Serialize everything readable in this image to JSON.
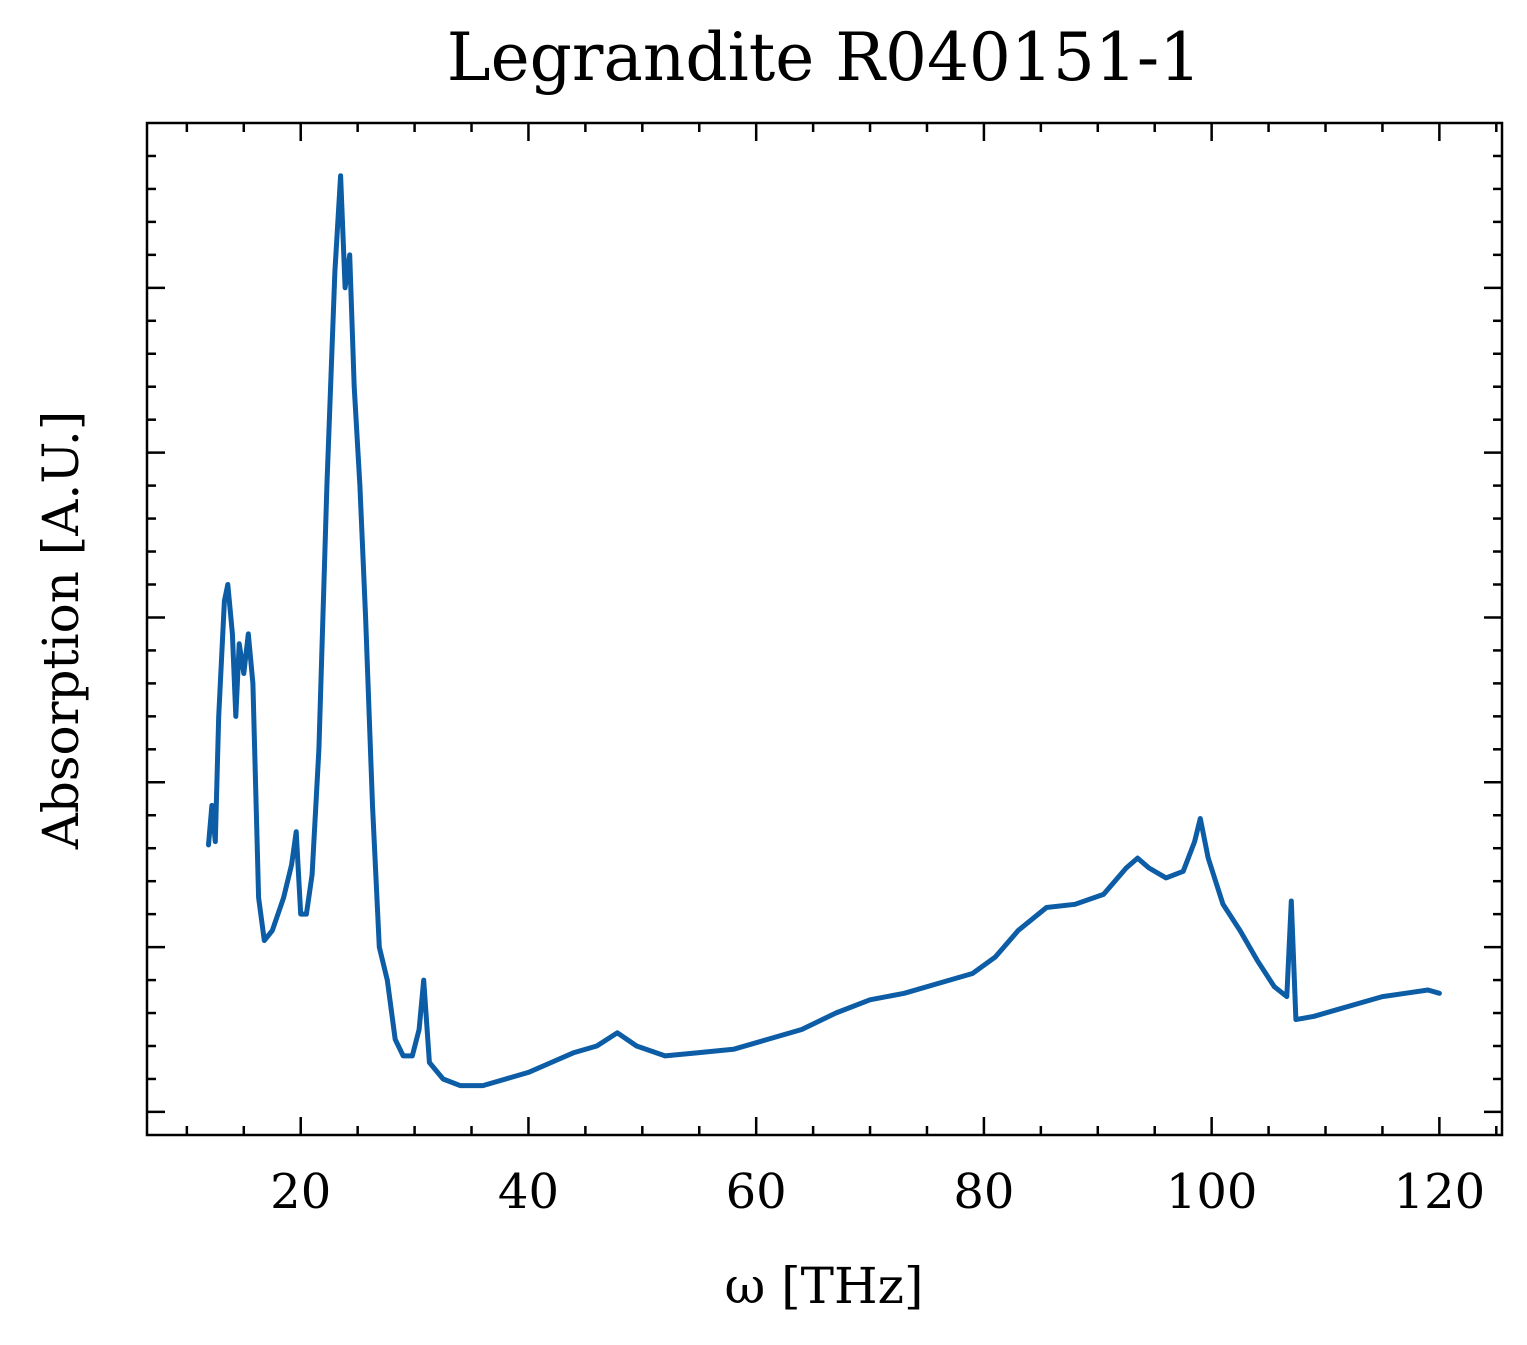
{
  "chart_data": {
    "type": "line",
    "title": "Legrandite R040151-1",
    "xlabel": "ω [THz]",
    "ylabel": "Absorption [A.U.]",
    "xlim": [
      6.5,
      125.5
    ],
    "ylim": [
      -0.07,
      3.0
    ],
    "x_ticks": [
      20,
      40,
      60,
      80,
      100,
      120
    ],
    "y_ticks_unlabeled": [
      0,
      0.5,
      1.0,
      1.5,
      2.0,
      2.5
    ],
    "grid": false,
    "line_color": "#0c5da5",
    "series": [
      {
        "values": [
          [
            11.9,
            0.81
          ],
          [
            12.2,
            0.93
          ],
          [
            12.5,
            0.82
          ],
          [
            12.8,
            1.2
          ],
          [
            13.3,
            1.55
          ],
          [
            13.6,
            1.6
          ],
          [
            14.0,
            1.45
          ],
          [
            14.3,
            1.2
          ],
          [
            14.6,
            1.42
          ],
          [
            15.0,
            1.33
          ],
          [
            15.4,
            1.45
          ],
          [
            15.8,
            1.3
          ],
          [
            16.3,
            0.65
          ],
          [
            16.8,
            0.52
          ],
          [
            17.5,
            0.55
          ],
          [
            18.5,
            0.65
          ],
          [
            19.2,
            0.75
          ],
          [
            19.6,
            0.85
          ],
          [
            20.0,
            0.6
          ],
          [
            20.5,
            0.6
          ],
          [
            21.0,
            0.72
          ],
          [
            21.6,
            1.1
          ],
          [
            22.3,
            1.9
          ],
          [
            23.0,
            2.55
          ],
          [
            23.5,
            2.84
          ],
          [
            23.9,
            2.5
          ],
          [
            24.3,
            2.6
          ],
          [
            24.7,
            2.2
          ],
          [
            25.2,
            1.9
          ],
          [
            25.7,
            1.5
          ],
          [
            26.3,
            0.93
          ],
          [
            26.9,
            0.5
          ],
          [
            27.6,
            0.4
          ],
          [
            28.3,
            0.22
          ],
          [
            29.0,
            0.17
          ],
          [
            29.8,
            0.17
          ],
          [
            30.4,
            0.25
          ],
          [
            30.8,
            0.4
          ],
          [
            31.3,
            0.15
          ],
          [
            32.5,
            0.1
          ],
          [
            34.0,
            0.08
          ],
          [
            36.0,
            0.08
          ],
          [
            38.0,
            0.1
          ],
          [
            40.0,
            0.12
          ],
          [
            42.0,
            0.15
          ],
          [
            44.0,
            0.18
          ],
          [
            46.0,
            0.2
          ],
          [
            47.8,
            0.24
          ],
          [
            49.5,
            0.2
          ],
          [
            52.0,
            0.17
          ],
          [
            55.0,
            0.18
          ],
          [
            58.0,
            0.19
          ],
          [
            61.0,
            0.22
          ],
          [
            64.0,
            0.25
          ],
          [
            67.0,
            0.3
          ],
          [
            70.0,
            0.34
          ],
          [
            73.0,
            0.36
          ],
          [
            76.0,
            0.39
          ],
          [
            79.0,
            0.42
          ],
          [
            81.0,
            0.47
          ],
          [
            83.0,
            0.55
          ],
          [
            85.5,
            0.62
          ],
          [
            88.0,
            0.63
          ],
          [
            90.5,
            0.66
          ],
          [
            92.5,
            0.74
          ],
          [
            93.5,
            0.77
          ],
          [
            94.5,
            0.74
          ],
          [
            96.0,
            0.71
          ],
          [
            97.5,
            0.73
          ],
          [
            98.5,
            0.82
          ],
          [
            99.0,
            0.89
          ],
          [
            99.7,
            0.77
          ],
          [
            101.0,
            0.63
          ],
          [
            102.5,
            0.55
          ],
          [
            104.0,
            0.46
          ],
          [
            105.5,
            0.38
          ],
          [
            106.6,
            0.35
          ],
          [
            107.0,
            0.64
          ],
          [
            107.4,
            0.28
          ],
          [
            109.0,
            0.29
          ],
          [
            111.0,
            0.31
          ],
          [
            113.0,
            0.33
          ],
          [
            115.0,
            0.35
          ],
          [
            117.0,
            0.36
          ],
          [
            119.0,
            0.37
          ],
          [
            120.0,
            0.36
          ]
        ]
      }
    ]
  }
}
